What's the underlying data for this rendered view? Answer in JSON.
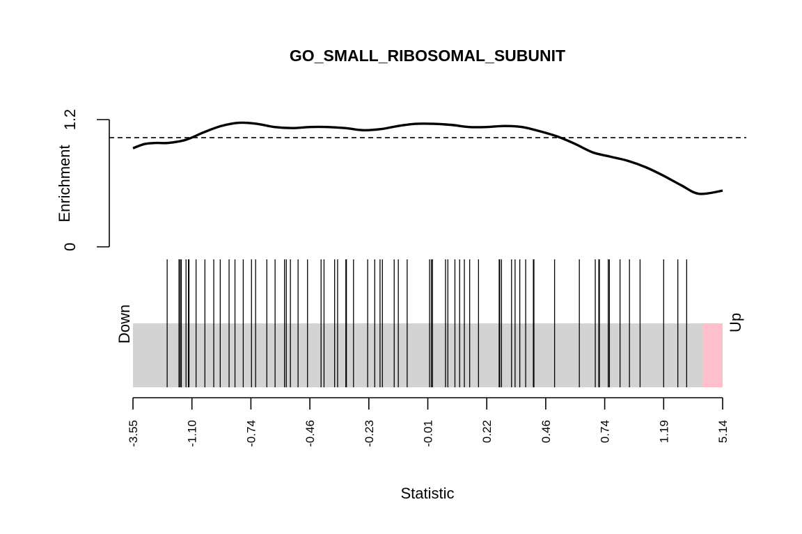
{
  "chart_data": {
    "type": "barcode",
    "title": "GO_SMALL_RIBOSOMAL_SUBUNIT",
    "xlabel": "Statistic",
    "ylabel": "Enrichment",
    "enrichment_axis": {
      "ylim": [
        0,
        1.2
      ],
      "ticks": [
        "0",
        "1.2"
      ],
      "baseline": 1.03
    },
    "x_quantile_ticks": [
      "-3.55",
      "-1.10",
      "-0.74",
      "-0.46",
      "-0.23",
      "-0.01",
      "0.22",
      "0.46",
      "0.74",
      "1.19",
      "5.14"
    ],
    "labels": {
      "down": "Down",
      "up": "Up"
    },
    "enrichment_curve": {
      "x": [
        0.0,
        0.02,
        0.04,
        0.06,
        0.09,
        0.12,
        0.15,
        0.18,
        0.21,
        0.24,
        0.27,
        0.3,
        0.33,
        0.36,
        0.39,
        0.42,
        0.45,
        0.48,
        0.51,
        0.54,
        0.57,
        0.6,
        0.63,
        0.66,
        0.69,
        0.72,
        0.75,
        0.78,
        0.81,
        0.84,
        0.87,
        0.9,
        0.93,
        0.96,
        1.0
      ],
      "y": [
        0.93,
        0.97,
        0.98,
        0.98,
        1.01,
        1.08,
        1.14,
        1.17,
        1.16,
        1.13,
        1.12,
        1.13,
        1.13,
        1.12,
        1.1,
        1.11,
        1.14,
        1.16,
        1.16,
        1.15,
        1.13,
        1.13,
        1.14,
        1.13,
        1.09,
        1.04,
        0.97,
        0.89,
        0.85,
        0.81,
        0.75,
        0.67,
        0.58,
        0.5,
        0.53
      ]
    },
    "barcode_positions": [
      0.058,
      0.078,
      0.08,
      0.082,
      0.09,
      0.094,
      0.095,
      0.107,
      0.122,
      0.137,
      0.148,
      0.163,
      0.173,
      0.187,
      0.201,
      0.208,
      0.227,
      0.241,
      0.257,
      0.26,
      0.267,
      0.28,
      0.296,
      0.319,
      0.324,
      0.342,
      0.347,
      0.361,
      0.362,
      0.374,
      0.398,
      0.41,
      0.419,
      0.423,
      0.443,
      0.45,
      0.465,
      0.503,
      0.506,
      0.508,
      0.53,
      0.534,
      0.546,
      0.554,
      0.562,
      0.571,
      0.586,
      0.621,
      0.622,
      0.625,
      0.642,
      0.648,
      0.656,
      0.666,
      0.679,
      0.68,
      0.715,
      0.757,
      0.784,
      0.79,
      0.791,
      0.806,
      0.808,
      0.826,
      0.842,
      0.86,
      0.9,
      0.924,
      0.939
    ]
  }
}
